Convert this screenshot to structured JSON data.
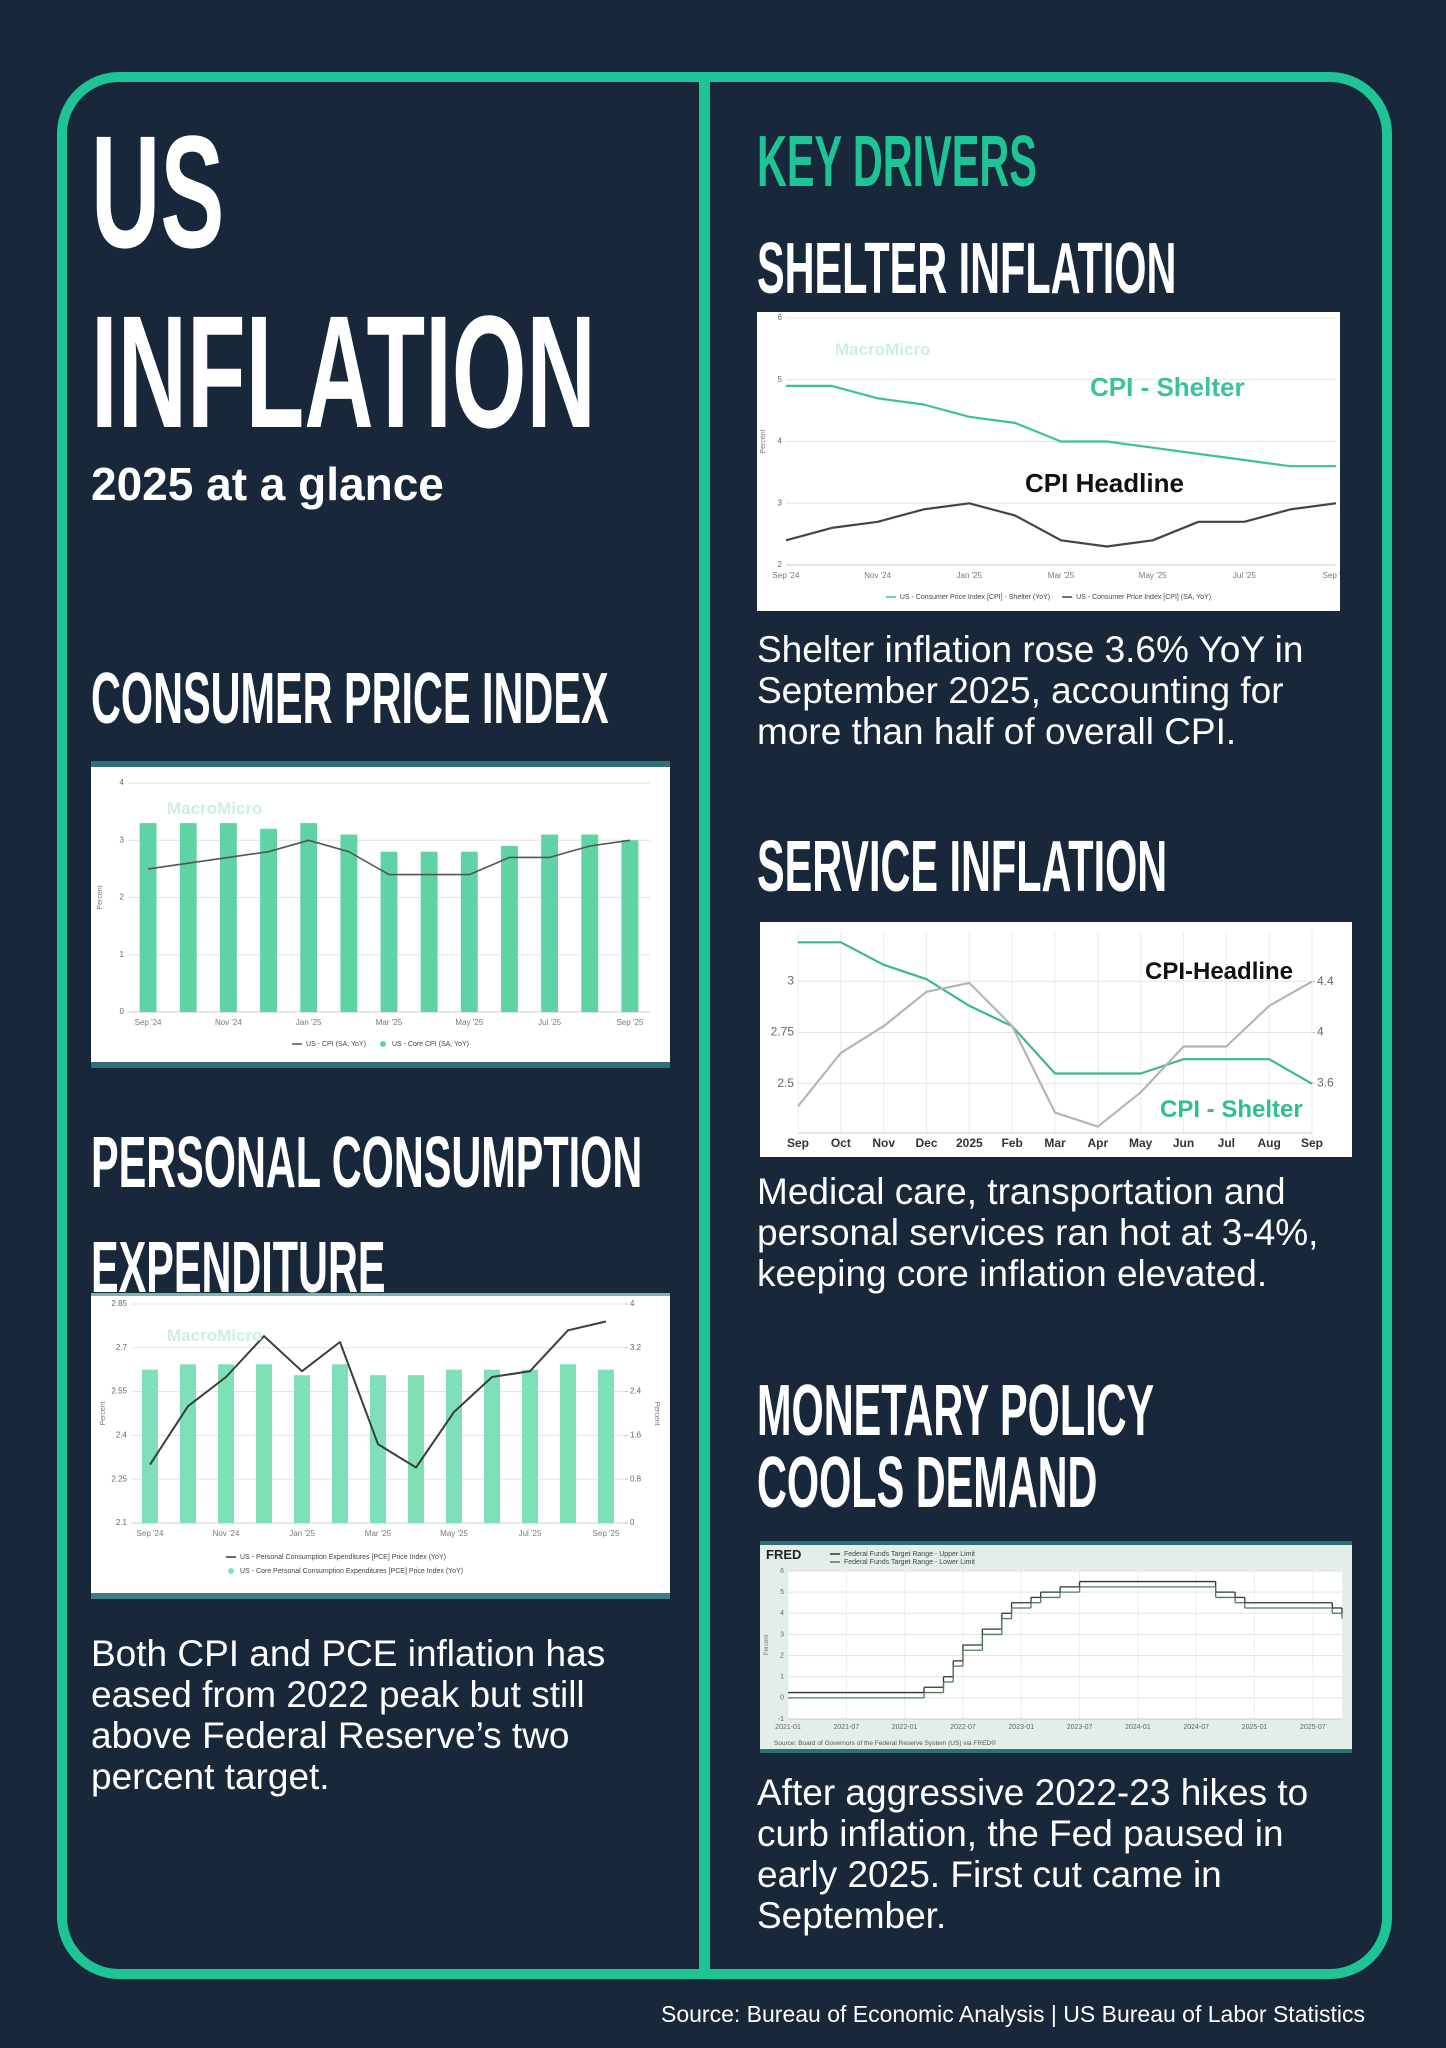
{
  "header": {
    "title_lines": [
      "US",
      "INFLATION"
    ],
    "subtitle": "2025 at a glance"
  },
  "left": {
    "cpi_heading": "CONSUMER PRICE INDEX",
    "pce_heading": [
      "PERSONAL CONSUMPTION",
      "EXPENDITURE"
    ],
    "text": "Both CPI and PCE inflation has eased from 2022 peak but still above Federal Reserve’s two percent target."
  },
  "right": {
    "heading": "KEY DRIVERS",
    "shelter_heading": "SHELTER INFLATION",
    "shelter_text": "Shelter inflation rose 3.6% YoY in September 2025, accounting for more than half of overall CPI.",
    "service_heading": "SERVICE INFLATION",
    "service_text": "Medical care, transportation and personal services ran hot at 3-4%, keeping core inflation elevated.",
    "policy_heading": [
      "MONETARY POLICY",
      "COOLS DEMAND"
    ],
    "policy_text": "After aggressive 2022-23 hikes to curb inflation, the Fed paused in early 2025. First cut came in September."
  },
  "chart_data": [
    {
      "type": "combo",
      "watermark": "MacroMicro",
      "y_label": "Percent",
      "grid": true,
      "legend": "bottom",
      "categories": [
        "Sep '24",
        null,
        "Nov '24",
        null,
        "Jan '25",
        null,
        "Mar '25",
        null,
        "May '25",
        null,
        "Jul '25",
        null,
        "Sep '25"
      ],
      "ylim": [
        0,
        4
      ],
      "yticks": [
        0,
        1,
        2,
        3,
        4
      ],
      "series": [
        {
          "name": "US - CPI (SA, YoY)",
          "type": "line",
          "color": "#555555",
          "values": [
            2.5,
            2.6,
            2.7,
            2.8,
            3.0,
            2.8,
            2.4,
            2.4,
            2.4,
            2.7,
            2.7,
            2.9,
            3.0
          ]
        },
        {
          "name": "US - Core CPI (SA, YoY)",
          "type": "bar",
          "color": "#5fd3a4",
          "values": [
            3.3,
            3.3,
            3.3,
            3.2,
            3.3,
            3.1,
            2.8,
            2.8,
            2.8,
            2.9,
            3.1,
            3.1,
            3.0
          ]
        }
      ]
    },
    {
      "type": "combo",
      "watermark": "MacroMicro",
      "y_label": "Percent",
      "y2_label": "Percent",
      "grid": true,
      "legend": "bottom",
      "categories": [
        "Sep '24",
        null,
        "Nov '24",
        null,
        "Jan '25",
        null,
        "Mar '25",
        null,
        "May '25",
        null,
        "Jul '25",
        null,
        "Sep '25"
      ],
      "ylim": [
        2.1,
        2.85
      ],
      "yticks": [
        2.1,
        2.25,
        2.4,
        2.55,
        2.7,
        2.85
      ],
      "y2lim": [
        0,
        4
      ],
      "y2ticks": [
        0,
        0.8,
        1.6,
        2.4,
        3.2,
        4
      ],
      "series": [
        {
          "name": "US - Personal Consumption Expenditures [PCE] Price Index (YoY)",
          "type": "line",
          "color": "#3a3f3c",
          "values": [
            2.3,
            2.5,
            2.6,
            2.74,
            2.62,
            2.72,
            2.37,
            2.29,
            2.48,
            2.6,
            2.62,
            2.76,
            2.79
          ]
        },
        {
          "name": "US - Core Personal Consumption Expenditures [PCE] Price Index (YoY)",
          "type": "bar",
          "axis": "y2",
          "color": "#7fe0b8",
          "values": [
            2.8,
            2.9,
            2.9,
            2.9,
            2.7,
            2.9,
            2.7,
            2.7,
            2.8,
            2.8,
            2.8,
            2.9,
            2.8
          ]
        }
      ]
    },
    {
      "type": "line",
      "watermark": "MacroMicro",
      "y_label": "Percent",
      "grid": true,
      "legend": "bottom",
      "annotations": [
        "CPI - Shelter",
        "CPI Headline"
      ],
      "categories": [
        "Sep '24",
        null,
        "Nov '24",
        null,
        "Jan '25",
        null,
        "Mar '25",
        null,
        "May '25",
        null,
        "Jul '25",
        null,
        "Sep '25"
      ],
      "ylim": [
        2,
        6
      ],
      "yticks": [
        2,
        3,
        4,
        5,
        6
      ],
      "series": [
        {
          "name": "US - Consumer Price Index [CPI] - Shelter (YoY)",
          "color": "#3cc29a",
          "values": [
            4.9,
            4.9,
            4.7,
            4.6,
            4.4,
            4.3,
            4.0,
            4.0,
            3.9,
            3.8,
            3.7,
            3.6,
            3.6
          ]
        },
        {
          "name": "US - Consumer Price Index [CPI] (SA, YoY)",
          "color": "#444444",
          "values": [
            2.4,
            2.6,
            2.7,
            2.9,
            3.0,
            2.8,
            2.4,
            2.3,
            2.4,
            2.7,
            2.7,
            2.9,
            3.0
          ]
        }
      ]
    },
    {
      "type": "line",
      "grid": true,
      "xgrid": true,
      "categories": [
        "Sep",
        "Oct",
        "Nov",
        "Dec",
        "2025",
        "Feb",
        "Mar",
        "Apr",
        "May",
        "Jun",
        "Jul",
        "Aug",
        "Sep"
      ],
      "ylim": [
        2.26,
        3.24
      ],
      "yticks": [
        2.5,
        2.75,
        3
      ],
      "y2lim": [
        3.21,
        4.79
      ],
      "y2ticks": [
        3.6,
        4,
        4.4
      ],
      "series": [
        {
          "name": "CPI - Shelter",
          "color": "#3cb88f",
          "values": [
            3.19,
            3.19,
            3.08,
            3.01,
            2.88,
            2.78,
            2.55,
            2.55,
            2.55,
            2.62,
            2.62,
            2.62,
            2.5
          ]
        },
        {
          "name": "CPI-Headline",
          "axis": "y2",
          "color": "#b5b5b5",
          "values": [
            3.42,
            3.84,
            4.05,
            4.32,
            4.39,
            4.05,
            3.37,
            3.26,
            3.53,
            3.89,
            3.89,
            4.21,
            4.4
          ]
        }
      ]
    },
    {
      "type": "line",
      "drawstyle": "steps-post",
      "title": "FRED",
      "y_label": "Percent",
      "grid": true,
      "legend": "top-left",
      "source": "Source: Board of Governors of the Federal Reserve System (US) via FRED®",
      "x": [
        "2021-01",
        "2022-03",
        "2022-05",
        "2022-06",
        "2022-07",
        "2022-09",
        "2022-11",
        "2022-12",
        "2023-02",
        "2023-03",
        "2023-05",
        "2023-07",
        "2024-09",
        "2024-11",
        "2024-12",
        "2025-09",
        "2025-10"
      ],
      "xlim": [
        "2021-01",
        "2025-10"
      ],
      "xticks": [
        "2021-01",
        "2021-07",
        "2022-01",
        "2022-07",
        "2023-01",
        "2023-07",
        "2024-01",
        "2024-07",
        "2025-01",
        "2025-07"
      ],
      "ylim": [
        -1,
        6
      ],
      "yticks": [
        -1,
        0,
        1,
        2,
        3,
        4,
        5,
        6
      ],
      "series": [
        {
          "name": "Federal Funds Target Range - Upper Limit",
          "color": "#333333",
          "values": [
            0.25,
            0.5,
            1,
            1.75,
            2.5,
            3.25,
            4,
            4.5,
            4.75,
            5,
            5.25,
            5.5,
            5,
            4.75,
            4.5,
            4.25,
            4
          ]
        },
        {
          "name": "Federal Funds Target Range - Lower Limit",
          "color": "#4c7d5b",
          "values": [
            0,
            0.25,
            0.75,
            1.5,
            2.25,
            3,
            3.75,
            4.25,
            4.5,
            4.75,
            5,
            5.25,
            4.75,
            4.5,
            4.25,
            4,
            3.75
          ]
        }
      ]
    }
  ],
  "source": "Source: Bureau of Economic Analysis | US Bureau of Labor Statistics"
}
